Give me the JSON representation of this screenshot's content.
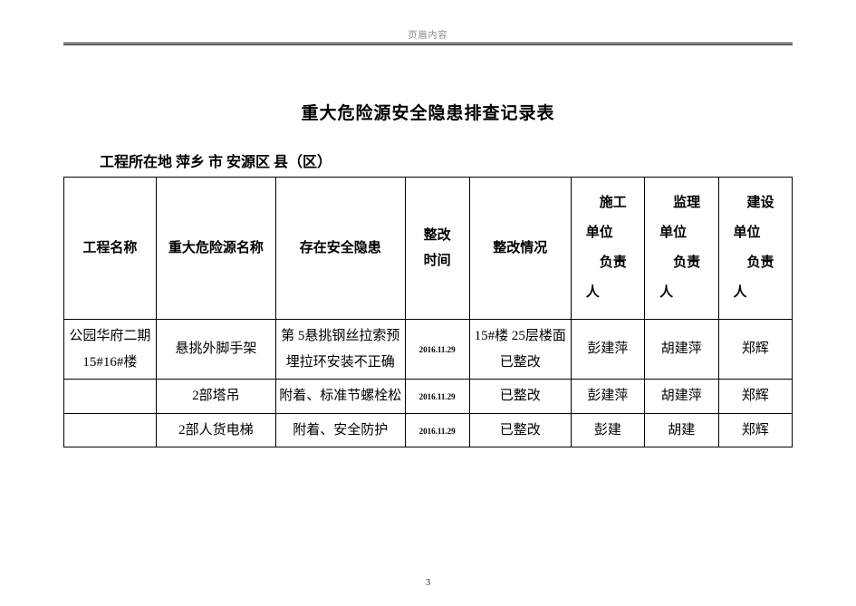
{
  "header_label": "页眉内容",
  "title": "重大危险源安全隐患排查记录表",
  "location_line": "工程所在地 萍乡  市  安源区  县（区）",
  "page_number": "3",
  "table": {
    "headers": {
      "project_name": "工程名称",
      "hazard_name": "重大危险源名称",
      "issue": "存在安全隐患",
      "rect_time_l1": "整改",
      "rect_time_l2": "时间",
      "status": "整改情况",
      "p1_l1": "施工",
      "p1_l2": "单位",
      "p1_l3": "负责",
      "p1_l4": "人",
      "p2_l1": "监理",
      "p2_l2": "单位",
      "p2_l3": "负责",
      "p2_l4": "人",
      "p3_l1": "建设",
      "p3_l2": "单位",
      "p3_l3": "负责",
      "p3_l4": "人"
    },
    "rows": [
      {
        "project_name": "公园华府二期15#16#楼",
        "hazard_name": "悬挑外脚手架",
        "issue": "第 5悬挑钢丝拉索预埋拉环安装不正确",
        "time": "2016.11.29",
        "status": "15#楼 25层楼面已整改",
        "p1": "彭建萍",
        "p2": "胡建萍",
        "p3": "郑辉"
      },
      {
        "project_name": "",
        "hazard_name": "2部塔吊",
        "issue": "附着、标准节螺栓松",
        "time": "2016.11.29",
        "status": "已整改",
        "p1": "彭建萍",
        "p2": "胡建萍",
        "p3": "郑辉"
      },
      {
        "project_name": "",
        "hazard_name": "2部人货电梯",
        "issue": "附着、安全防护",
        "time": "2016.11.29",
        "status": "已整改",
        "p1": "彭建",
        "p2": "胡建",
        "p3": "郑辉"
      }
    ]
  }
}
